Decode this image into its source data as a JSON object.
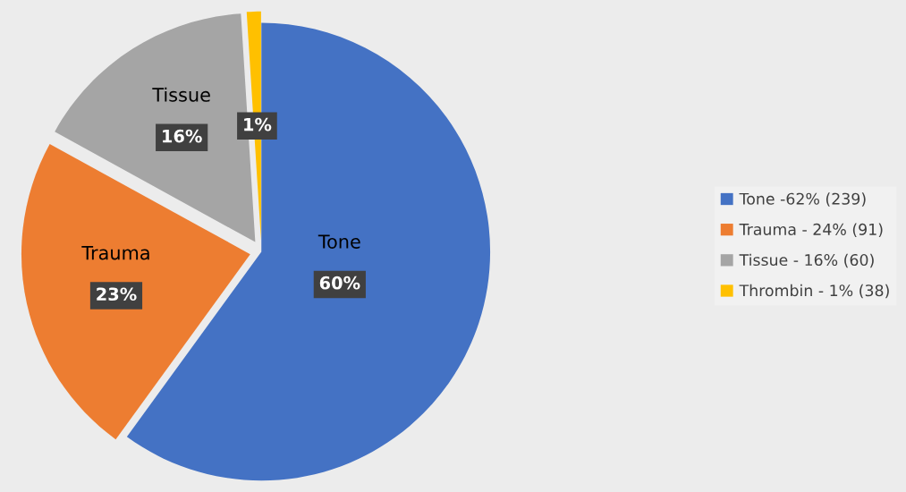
{
  "chart_data": {
    "type": "pie",
    "categories": [
      "Tone -62% (239)",
      "Trauma - 24% (91)",
      "Tissue - 16% (60)",
      "Thrombin - 1% (38)"
    ],
    "values": [
      60,
      23,
      16,
      1
    ],
    "colors": [
      "#4472c4",
      "#ed7d31",
      "#a5a5a5",
      "#ffc000"
    ],
    "value_labels": [
      "60%",
      "23%",
      "16%",
      "1%"
    ],
    "annotations": [
      "Tone",
      "Trauma",
      "Tissue"
    ],
    "legend": "right"
  }
}
